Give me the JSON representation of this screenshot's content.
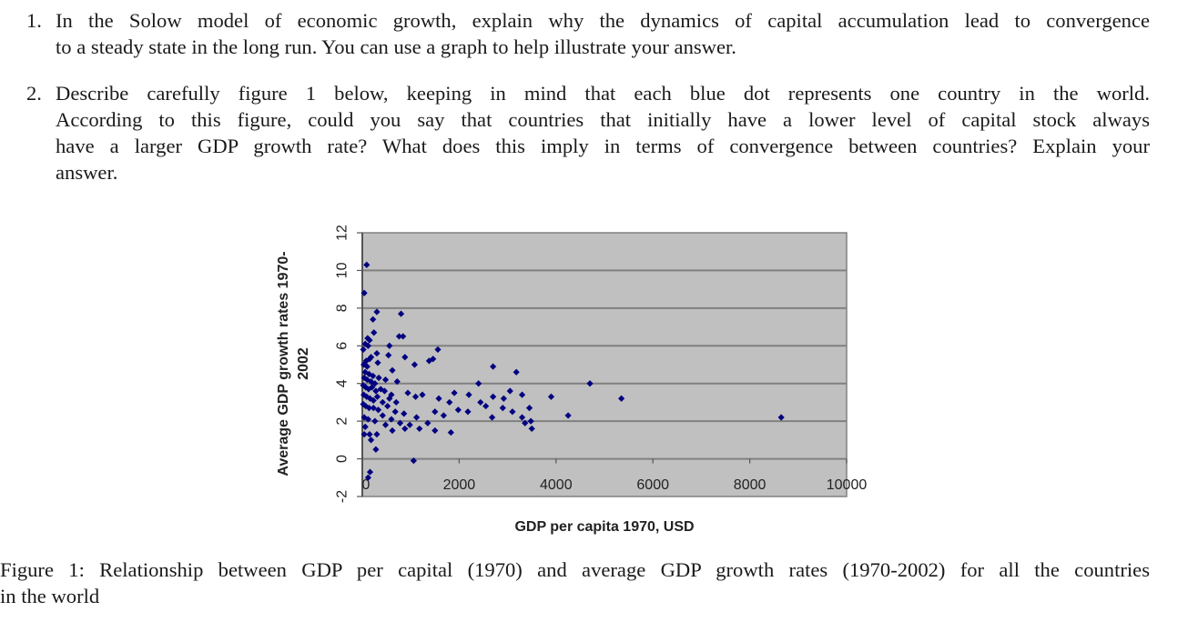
{
  "questions": [
    {
      "number": "1.",
      "lines": [
        "In the Solow model of economic growth, explain why the dynamics of capital accumulation lead to convergence",
        "to a steady state in the long run. You can use a graph to help illustrate your answer."
      ]
    },
    {
      "number": "2.",
      "lines": [
        "Describe carefully figure 1 below, keeping in mind that each blue dot represents one country in the world.",
        "According to this figure, could you say that countries that initially have a lower level of capital stock always",
        "have a larger GDP growth rate? What does this imply in terms of convergence between countries? Explain your",
        "answer."
      ]
    }
  ],
  "caption": {
    "lines": [
      "Figure 1: Relationship between GDP per capital (1970) and average GDP growth rates (1970-2002) for all the countries",
      "in the world"
    ]
  },
  "chart_data": {
    "type": "scatter",
    "title": "",
    "xlabel": "GDP per capita 1970, USD",
    "ylabel_lines": [
      "Average GDP growth rates 1970-",
      "2002"
    ],
    "xlim": [
      0,
      10000
    ],
    "ylim": [
      -2,
      12
    ],
    "x_ticks": [
      0,
      2000,
      4000,
      6000,
      8000,
      10000
    ],
    "x_tick_labels": [
      "0",
      "2000",
      "4000",
      "6000",
      "8000",
      "10000"
    ],
    "y_ticks": [
      -2,
      0,
      2,
      4,
      6,
      8,
      10,
      12
    ],
    "y_tick_labels": [
      "-2",
      "0",
      "2",
      "4",
      "6",
      "8",
      "10",
      "12"
    ],
    "grid": "horizontal",
    "legend": "none",
    "colors": {
      "marker": "#000080",
      "plot_bg": "#c0c0c0",
      "gridline": "#808080"
    },
    "series": [
      {
        "name": "countries",
        "points": [
          [
            90,
            10.3
          ],
          [
            40,
            8.8
          ],
          [
            300,
            7.8
          ],
          [
            220,
            7.4
          ],
          [
            800,
            7.7
          ],
          [
            240,
            6.7
          ],
          [
            760,
            6.5
          ],
          [
            840,
            6.5
          ],
          [
            110,
            6.4
          ],
          [
            150,
            6.3
          ],
          [
            60,
            6.1
          ],
          [
            120,
            6.0
          ],
          [
            20,
            5.8
          ],
          [
            560,
            6.0
          ],
          [
            300,
            5.6
          ],
          [
            540,
            5.5
          ],
          [
            880,
            5.4
          ],
          [
            1460,
            5.3
          ],
          [
            1560,
            5.8
          ],
          [
            150,
            5.3
          ],
          [
            80,
            5.2
          ],
          [
            180,
            5.4
          ],
          [
            320,
            5.1
          ],
          [
            30,
            5.0
          ],
          [
            100,
            4.9
          ],
          [
            620,
            4.7
          ],
          [
            1080,
            5.0
          ],
          [
            1380,
            5.2
          ],
          [
            2700,
            4.9
          ],
          [
            3180,
            4.6
          ],
          [
            60,
            4.6
          ],
          [
            140,
            4.5
          ],
          [
            220,
            4.4
          ],
          [
            40,
            4.3
          ],
          [
            100,
            4.2
          ],
          [
            180,
            4.1
          ],
          [
            260,
            4.0
          ],
          [
            340,
            4.3
          ],
          [
            480,
            4.2
          ],
          [
            720,
            4.1
          ],
          [
            20,
            3.9
          ],
          [
            70,
            3.8
          ],
          [
            130,
            3.7
          ],
          [
            200,
            3.8
          ],
          [
            280,
            3.6
          ],
          [
            380,
            3.7
          ],
          [
            460,
            3.6
          ],
          [
            600,
            3.4
          ],
          [
            940,
            3.5
          ],
          [
            1100,
            3.3
          ],
          [
            1240,
            3.4
          ],
          [
            2400,
            4.0
          ],
          [
            3050,
            3.6
          ],
          [
            4700,
            4.0
          ],
          [
            30,
            3.4
          ],
          [
            90,
            3.3
          ],
          [
            160,
            3.2
          ],
          [
            230,
            3.1
          ],
          [
            310,
            3.3
          ],
          [
            420,
            3.0
          ],
          [
            560,
            3.2
          ],
          [
            700,
            3.0
          ],
          [
            1580,
            3.2
          ],
          [
            1800,
            3.0
          ],
          [
            1900,
            3.5
          ],
          [
            2200,
            3.4
          ],
          [
            2440,
            3.0
          ],
          [
            2700,
            3.3
          ],
          [
            2920,
            3.2
          ],
          [
            3300,
            3.4
          ],
          [
            3900,
            3.3
          ],
          [
            5350,
            3.2
          ],
          [
            20,
            2.9
          ],
          [
            70,
            2.8
          ],
          [
            140,
            2.7
          ],
          [
            230,
            2.7
          ],
          [
            330,
            2.6
          ],
          [
            520,
            2.8
          ],
          [
            680,
            2.5
          ],
          [
            860,
            2.4
          ],
          [
            1500,
            2.5
          ],
          [
            1680,
            2.3
          ],
          [
            1980,
            2.6
          ],
          [
            2180,
            2.5
          ],
          [
            2550,
            2.8
          ],
          [
            2900,
            2.7
          ],
          [
            3100,
            2.5
          ],
          [
            3450,
            2.7
          ],
          [
            40,
            2.2
          ],
          [
            120,
            2.1
          ],
          [
            260,
            2.0
          ],
          [
            420,
            2.3
          ],
          [
            600,
            2.1
          ],
          [
            780,
            1.9
          ],
          [
            980,
            1.8
          ],
          [
            1120,
            2.2
          ],
          [
            2680,
            2.2
          ],
          [
            3300,
            2.2
          ],
          [
            4250,
            2.3
          ],
          [
            8650,
            2.2
          ],
          [
            1350,
            1.9
          ],
          [
            3360,
            1.9
          ],
          [
            3500,
            1.6
          ],
          [
            60,
            1.7
          ],
          [
            480,
            1.8
          ],
          [
            880,
            1.6
          ],
          [
            1180,
            1.6
          ],
          [
            1500,
            1.5
          ],
          [
            1830,
            1.4
          ],
          [
            3480,
            2.0
          ],
          [
            620,
            1.5
          ],
          [
            40,
            1.3
          ],
          [
            150,
            1.3
          ],
          [
            300,
            1.3
          ],
          [
            180,
            1.0
          ],
          [
            280,
            0.5
          ],
          [
            1060,
            -0.1
          ],
          [
            160,
            -0.7
          ],
          [
            120,
            -1.0
          ]
        ]
      }
    ]
  }
}
